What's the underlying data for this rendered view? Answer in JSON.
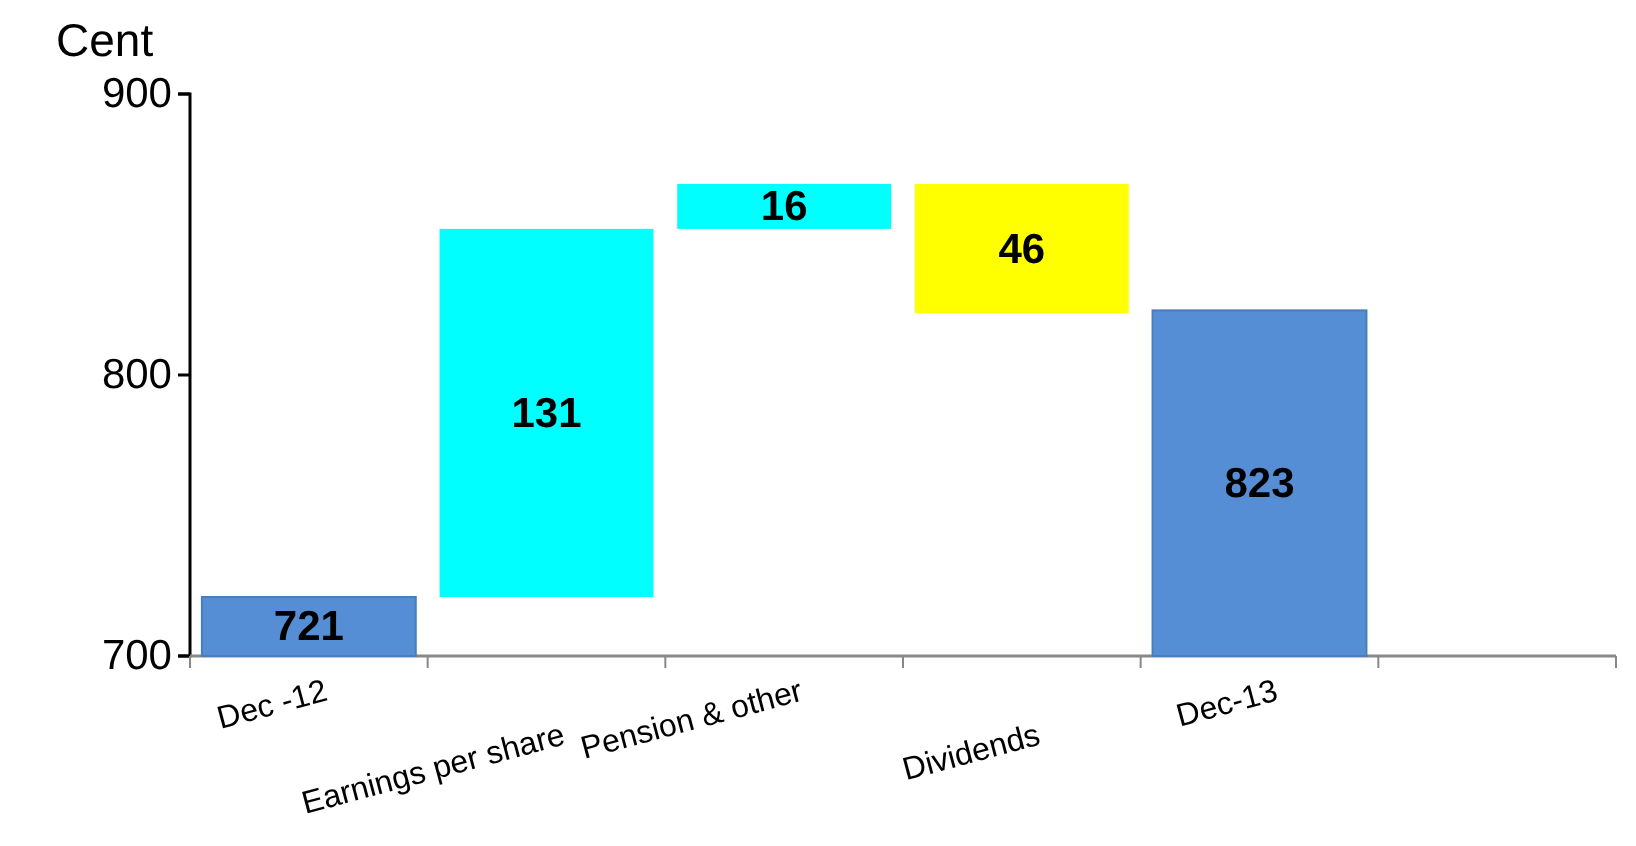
{
  "chart_data": {
    "type": "bar",
    "ylabel": "Cent",
    "categories": [
      "Dec -12",
      "Earnings per share",
      "Pension & other",
      "Dividends",
      "Dec-13",
      null
    ],
    "base": [
      700,
      721,
      852,
      868,
      700,
      null
    ],
    "values": [
      21,
      131,
      16,
      -46,
      123,
      null
    ],
    "colors": [
      "#558ed5",
      "#00ffff",
      "#00ffff",
      "#ffff00",
      "#558ed5",
      null
    ],
    "value_labels": [
      "721",
      "131",
      "16",
      "46",
      "823",
      null
    ],
    "ylim": [
      700,
      900
    ],
    "yticks": [
      700,
      800,
      900
    ],
    "grid": false
  }
}
